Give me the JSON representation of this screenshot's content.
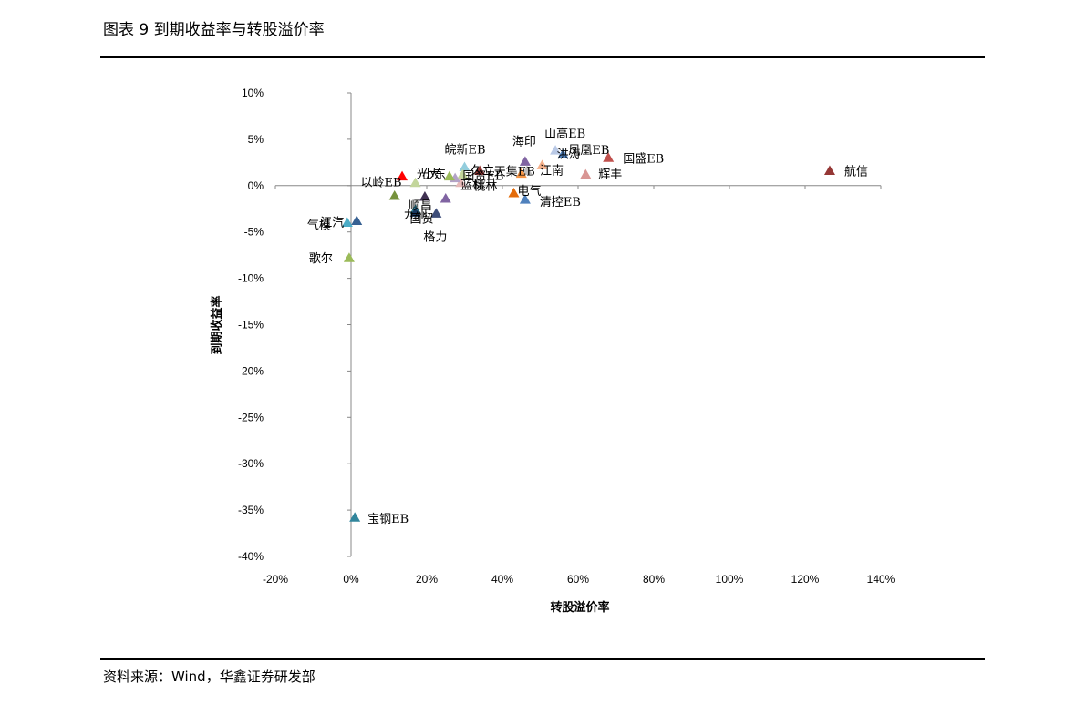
{
  "header": {
    "title": "图表 9 到期收益率与转股溢价率"
  },
  "footer": {
    "source": "资料来源：Wind，华鑫证券研发部"
  },
  "chart_data": {
    "type": "scatter",
    "title": "图表 9 到期收益率与转股溢价率",
    "xlabel": "转股溢价率",
    "ylabel": "到期收益率",
    "xlim": [
      -20,
      140
    ],
    "ylim": [
      -40,
      10
    ],
    "x_ticks": [
      -20,
      0,
      20,
      40,
      60,
      80,
      100,
      120,
      140
    ],
    "y_ticks": [
      10,
      5,
      0,
      -5,
      -10,
      -15,
      -20,
      -25,
      -30,
      -35,
      -40
    ],
    "x_tick_labels": [
      "-20%",
      "0%",
      "20%",
      "40%",
      "60%",
      "80%",
      "100%",
      "120%",
      "140%"
    ],
    "y_tick_labels": [
      "10%",
      "5%",
      "0%",
      "-5%",
      "-10%",
      "-15%",
      "-20%",
      "-25%",
      "-30%",
      "-35%",
      "-40%"
    ],
    "grid": false,
    "legend": "none",
    "points": [
      {
        "name": "航信",
        "x": 126.5,
        "y": 1.6,
        "color": "#953735"
      },
      {
        "name": "国盛EB",
        "x": 68.0,
        "y": 3.0,
        "color": "#c0504d"
      },
      {
        "name": "山高EB",
        "x": 54.0,
        "y": 3.8,
        "color": "#b9c9e6"
      },
      {
        "name": "凤凰EB",
        "x": 56.0,
        "y": 3.4,
        "color": "#4f81bd"
      },
      {
        "name": "洪涛",
        "x": 50.5,
        "y": 2.2,
        "color": "#f5b08a"
      },
      {
        "name": "辉丰",
        "x": 62.0,
        "y": 1.2,
        "color": "#d99694"
      },
      {
        "name": "海印",
        "x": 46.0,
        "y": 2.6,
        "color": "#8064a2"
      },
      {
        "name": "江南",
        "x": 46.5,
        "y": 1.6,
        "color": "#bfbfbf"
      },
      {
        "name": "天集EB",
        "x": 45.0,
        "y": 1.3,
        "color": "#f79646"
      },
      {
        "name": "皖新EB",
        "x": 30.0,
        "y": 2.0,
        "color": "#93cddd"
      },
      {
        "name": "国资EB",
        "x": 29.5,
        "y": 1.2,
        "color": "#c3d69b"
      },
      {
        "name": "久立",
        "x": 34.0,
        "y": 1.6,
        "color": "#953735"
      },
      {
        "name": "桃林",
        "x": 29.0,
        "y": 0.3,
        "color": "#e6b9b8"
      },
      {
        "name": "蓝标",
        "x": 27.5,
        "y": 0.8,
        "color": "#b3a2c7"
      },
      {
        "name": "电气",
        "x": 43.0,
        "y": -0.8,
        "color": "#e46c0a"
      },
      {
        "name": "清控EB",
        "x": 46.0,
        "y": -1.5,
        "color": "#4f81bd"
      },
      {
        "name": "光大",
        "x": 26.0,
        "y": 1.0,
        "color": "#9bbb59"
      },
      {
        "name": "以岭EB",
        "x": 17.0,
        "y": 0.3,
        "color": "#c3d69b"
      },
      {
        "name": "小东",
        "x": 13.5,
        "y": 1.0,
        "color": "#ff0000"
      },
      {
        "name": "顺昌",
        "x": 19.5,
        "y": -1.2,
        "color": "#403152"
      },
      {
        "name": "国贸",
        "x": 17.0,
        "y": -2.6,
        "color": "#31859c"
      },
      {
        "name": "九州",
        "x": 25.0,
        "y": -1.4,
        "color": "#8064a2"
      },
      {
        "name": "格力",
        "x": 22.5,
        "y": -3.0,
        "color": "#3f4e7a"
      },
      {
        "name": "气模",
        "x": -1.0,
        "y": -4.0,
        "color": "#4bacc6"
      },
      {
        "name": "江汽",
        "x": 1.5,
        "y": -3.8,
        "color": "#366092"
      },
      {
        "name": "歌尔",
        "x": -0.5,
        "y": -7.8,
        "color": "#9bbb59"
      },
      {
        "name": "宝钢EB",
        "x": 1.0,
        "y": -35.8,
        "color": "#31859c"
      },
      {
        "name": "",
        "x": 11.5,
        "y": -1.1,
        "color": "#76923c"
      },
      {
        "name": "",
        "x": 17.0,
        "y": -2.9,
        "color": "#17375e"
      }
    ]
  }
}
